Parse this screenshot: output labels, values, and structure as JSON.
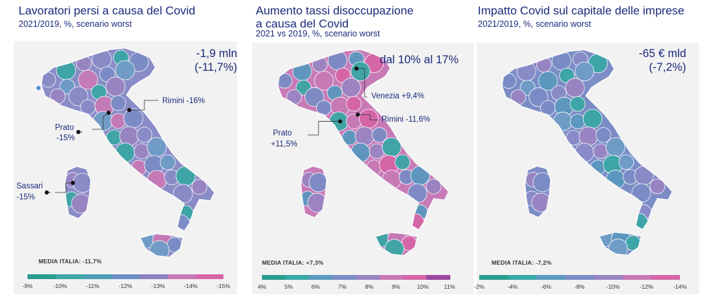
{
  "panels": [
    {
      "title": "Lavoratori persi a causa del Covid",
      "subtitle": "2021/2019, %, scenario worst",
      "headline": [
        "-1,9 mln",
        "(-11,7%)"
      ],
      "media": "MEDIA ITALIA: -11,7%",
      "legend": [
        "-9%",
        "-10%",
        "-11%",
        "-12%",
        "-13%",
        "-14%",
        "-15%"
      ],
      "legend_colors": [
        "#2a9d8f",
        "#3aa6a6",
        "#4b9fb6",
        "#6a8ec5",
        "#8a82c0",
        "#c77ab6",
        "#d566a8"
      ],
      "annotations": [
        "Rimini -16%",
        "Prato",
        "-15%",
        "Sassari",
        "-15%"
      ]
    },
    {
      "title": "Aumento tassi disoccupazione",
      "title2": "a causa del Covid",
      "subtitle": "2021 vs 2019, %, scenario worst",
      "headline": [
        "dal 10% al 17%"
      ],
      "media": "MEDIA ITALIA: +7,3%",
      "legend": [
        "4%",
        "5%",
        "6%",
        "7%",
        "8%",
        "9%",
        "10%",
        "11%"
      ],
      "legend_colors": [
        "#2a9d8f",
        "#3aa6a6",
        "#5b98bf",
        "#7b8cc6",
        "#9a84c2",
        "#c77ab6",
        "#d566a8",
        "#9a4aa0"
      ],
      "annotations": [
        "Venezia +9,4%",
        "Rimini -11,6%",
        "Prato",
        "+11,5%"
      ]
    },
    {
      "title": "Impatto Covid sul capitale delle imprese",
      "subtitle": "2021/2019, %, scenario worst",
      "headline": [
        "-65 € mld",
        "(-7,2%)"
      ],
      "media": "MEDIA ITALIA: -7,2%",
      "legend": [
        "-2%",
        "-4%",
        "-6%",
        "-8%",
        "-10%",
        "-12%",
        "-14%"
      ],
      "legend_colors": [
        "#2a9d8f",
        "#3aa6a6",
        "#5b98bf",
        "#7b8cc6",
        "#9a84c2",
        "#c77ab6",
        "#d566a8"
      ],
      "annotations": []
    }
  ],
  "region_palette": {
    "p1": [
      "#8a8cc8",
      "#6f9cc8",
      "#3aa6a6",
      "#c77ab6",
      "#9a84c2",
      "#7b8cc6"
    ],
    "p2": [
      "#c77ab6",
      "#9a84c2",
      "#d566a8",
      "#7b8cc6",
      "#3aa6a6",
      "#5b98bf"
    ],
    "p3": [
      "#7b8cc6",
      "#6f9cc8",
      "#8a8cc8",
      "#5b98bf",
      "#9a84c2",
      "#3aa6a6"
    ]
  },
  "accent_pink": "#d566a8",
  "accent_teal": "#2a9d8f"
}
